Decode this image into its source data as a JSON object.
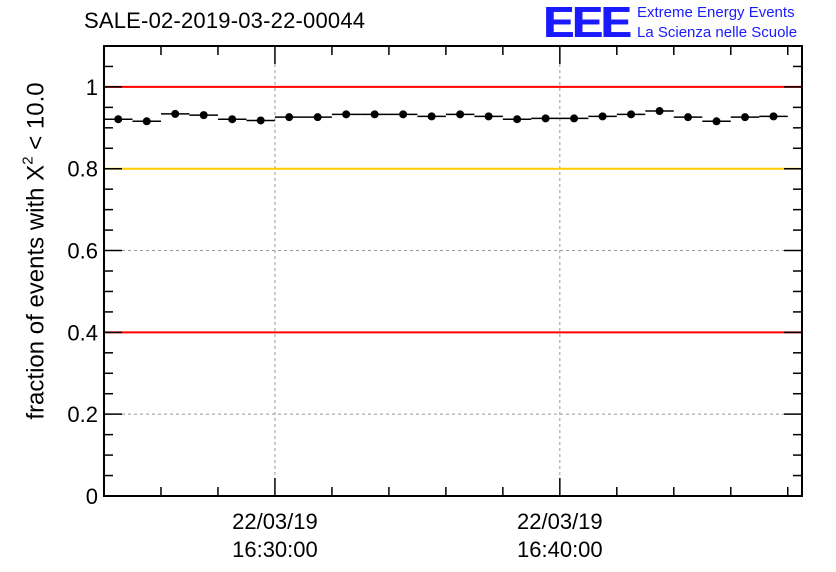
{
  "header": {
    "title": "SALE-02-2019-03-22-00044"
  },
  "logo": {
    "mark": "EEE",
    "line1": "Extreme Energy Events",
    "line2": "La Scienza nelle Scuole"
  },
  "chart_data": {
    "type": "scatter",
    "title": "SALE-02-2019-03-22-00044",
    "ylabel_prefix": "fraction of events with X",
    "ylabel_sup": "2",
    "ylabel_suffix": " < 10.0",
    "ylim": [
      0,
      1.1
    ],
    "yticks": [
      0,
      0.2,
      0.4,
      0.6,
      0.8,
      1
    ],
    "ytick_labels": [
      "0",
      "0.2",
      "0.4",
      "0.6",
      "0.8",
      "1"
    ],
    "xlim_minutes": [
      0,
      24.5
    ],
    "xticks": [
      {
        "minute": 6,
        "date": "22/03/19",
        "time": "16:30:00"
      },
      {
        "minute": 16,
        "date": "22/03/19",
        "time": "16:40:00"
      }
    ],
    "bin_width_minutes": 1,
    "x": [
      0.5,
      1.5,
      2.5,
      3.5,
      4.5,
      5.5,
      6.5,
      7.5,
      8.5,
      9.5,
      10.5,
      11.5,
      12.5,
      13.5,
      14.5,
      15.5,
      16.5,
      17.5,
      18.5,
      19.5,
      20.5,
      21.5,
      22.5,
      23.5
    ],
    "values": [
      0.921,
      0.916,
      0.934,
      0.931,
      0.921,
      0.918,
      0.926,
      0.926,
      0.933,
      0.933,
      0.933,
      0.928,
      0.933,
      0.928,
      0.921,
      0.923,
      0.923,
      0.928,
      0.933,
      0.941,
      0.926,
      0.916,
      0.926,
      0.928
    ],
    "reference_lines": [
      {
        "value": 1.0,
        "color": "#ff0000"
      },
      {
        "value": 0.8,
        "color": "#ffcc00"
      },
      {
        "value": 0.4,
        "color": "#ff0000"
      }
    ],
    "grid": true
  }
}
